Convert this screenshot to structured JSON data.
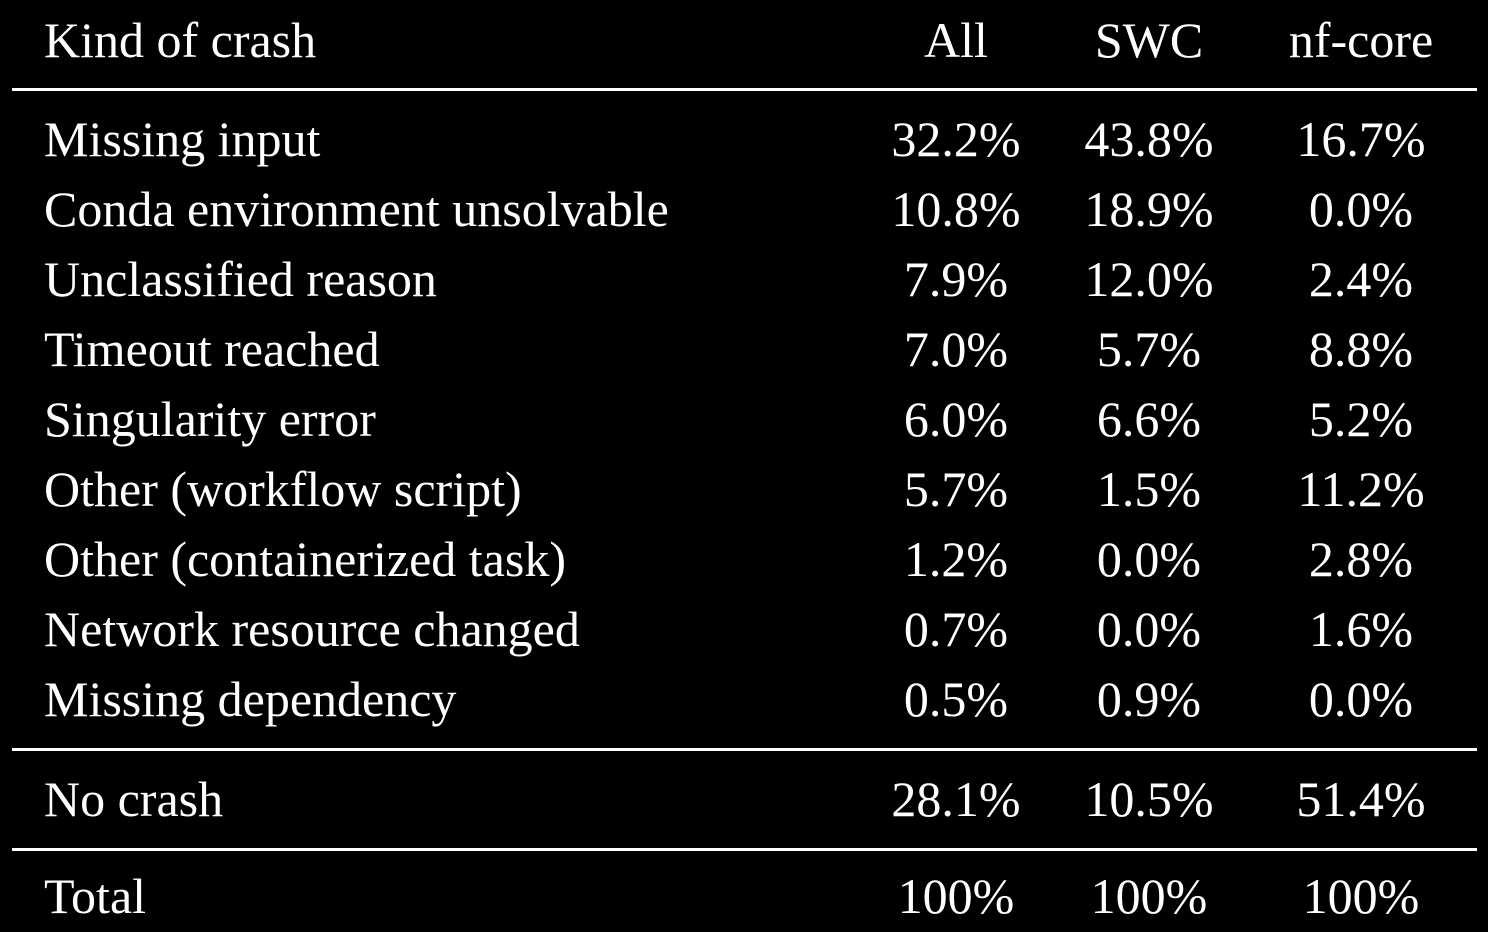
{
  "header": {
    "kind": "Kind of crash",
    "all": "All",
    "swc": "SWC",
    "nfcore": "nf-core"
  },
  "rows": [
    {
      "kind": "Missing input",
      "all": "32.2%",
      "swc": "43.8%",
      "nfcore": "16.7%"
    },
    {
      "kind": "Conda environment unsolvable",
      "all": "10.8%",
      "swc": "18.9%",
      "nfcore": "0.0%"
    },
    {
      "kind": "Unclassified reason",
      "all": "7.9%",
      "swc": "12.0%",
      "nfcore": "2.4%"
    },
    {
      "kind": "Timeout reached",
      "all": "7.0%",
      "swc": "5.7%",
      "nfcore": "8.8%"
    },
    {
      "kind": "Singularity error",
      "all": "6.0%",
      "swc": "6.6%",
      "nfcore": "5.2%"
    },
    {
      "kind": "Other (workflow script)",
      "all": "5.7%",
      "swc": "1.5%",
      "nfcore": "11.2%"
    },
    {
      "kind": "Other (containerized task)",
      "all": "1.2%",
      "swc": "0.0%",
      "nfcore": "2.8%"
    },
    {
      "kind": "Network resource changed",
      "all": "0.7%",
      "swc": "0.0%",
      "nfcore": "1.6%"
    },
    {
      "kind": "Missing dependency",
      "all": "0.5%",
      "swc": "0.9%",
      "nfcore": "0.0%"
    }
  ],
  "no_crash": {
    "kind": "No crash",
    "all": "28.1%",
    "swc": "10.5%",
    "nfcore": "51.4%"
  },
  "total": {
    "kind": "Total",
    "all": "100%",
    "swc": "100%",
    "nfcore": "100%"
  }
}
